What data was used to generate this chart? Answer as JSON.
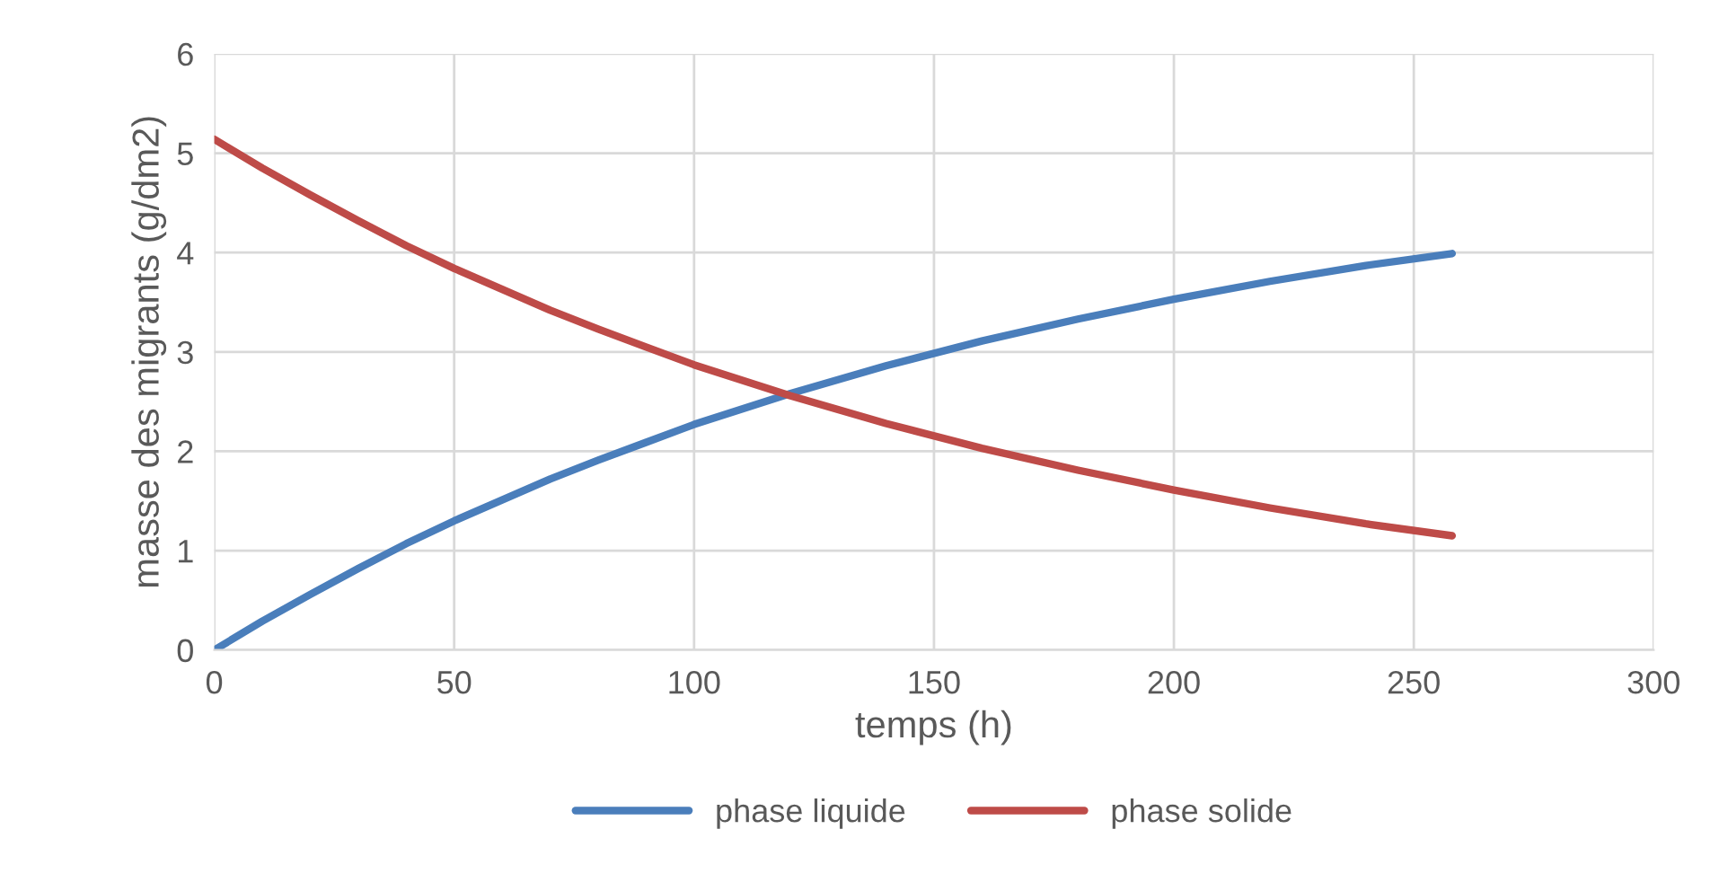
{
  "chart_data": {
    "type": "line",
    "xlabel": "temps (h)",
    "ylabel": "masse des migrants (g/dm2)",
    "x": [
      0,
      10,
      20,
      30,
      40,
      50,
      60,
      70,
      80,
      90,
      100,
      120,
      140,
      160,
      180,
      200,
      220,
      240,
      258
    ],
    "series": [
      {
        "name": "phase liquide",
        "color": "#4a7ebb",
        "values": [
          0,
          0.29,
          0.56,
          0.82,
          1.07,
          1.3,
          1.51,
          1.72,
          1.91,
          2.09,
          2.27,
          2.58,
          2.86,
          3.11,
          3.33,
          3.53,
          3.71,
          3.87,
          3.99
        ]
      },
      {
        "name": "phase solide",
        "color": "#be4b48",
        "values": [
          5.14,
          4.85,
          4.58,
          4.32,
          4.07,
          3.84,
          3.63,
          3.42,
          3.23,
          3.05,
          2.87,
          2.56,
          2.28,
          2.03,
          1.81,
          1.61,
          1.43,
          1.27,
          1.15
        ]
      }
    ],
    "xlim": [
      0,
      300
    ],
    "xticks": [
      0,
      50,
      100,
      150,
      200,
      250,
      300
    ],
    "ylim": [
      0,
      6
    ],
    "yticks": [
      0,
      1,
      2,
      3,
      4,
      5,
      6
    ],
    "grid": true,
    "legend": "bottom",
    "marker": "none",
    "line_style": "solid"
  }
}
